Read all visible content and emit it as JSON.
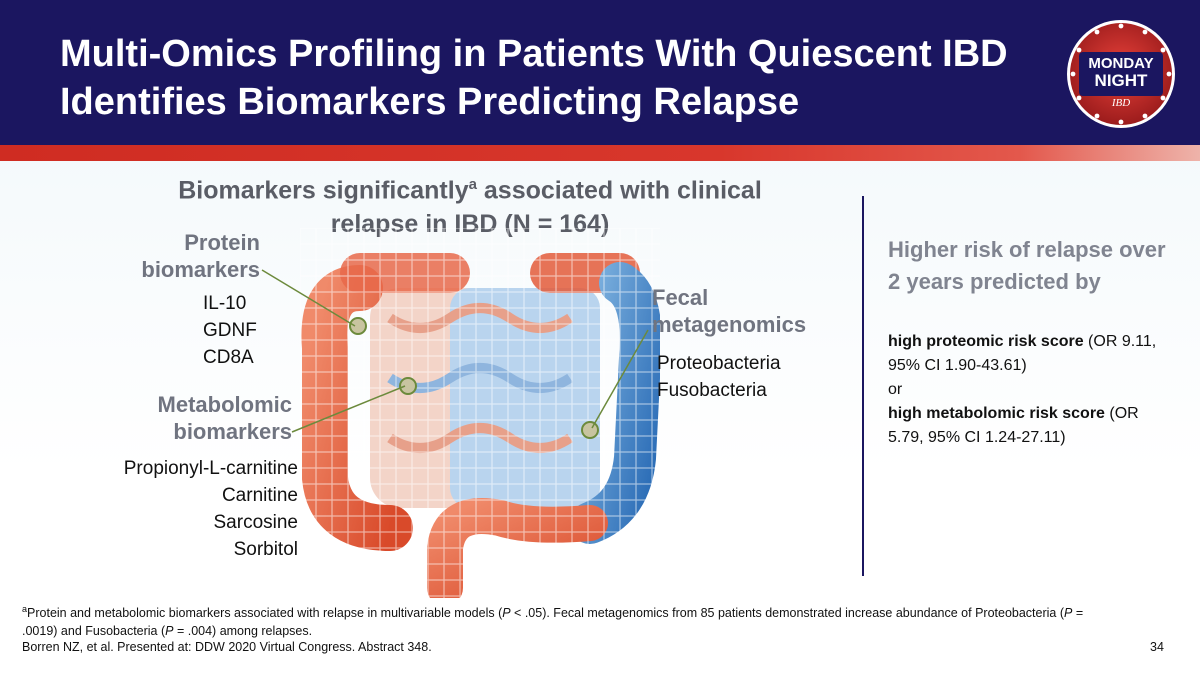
{
  "header": {
    "title_line1": "Multi-Omics Profiling in Patients With Quiescent IBD",
    "title_line2": "Identifies Biomarkers Predicting Relapse",
    "bg_color": "#1b1660",
    "accent_color": "#d8372c"
  },
  "logo": {
    "icon": "monday-night-ibd-logo",
    "text_line1": "MONDAY",
    "text_line2": "NIGHT",
    "text_line3": "IBD"
  },
  "biomarkers": {
    "heading_part1": "Biomarkers significantly",
    "heading_sup": "a",
    "heading_part2": " associated with clinical",
    "heading_line2": "relapse in IBD (N = 164)",
    "protein_label_line1": "Protein",
    "protein_label_line2": "biomarkers",
    "protein_items": [
      "IL-10",
      "GDNF",
      "CD8A"
    ],
    "metab_label_line1": "Metabolomic",
    "metab_label_line2": "biomarkers",
    "metab_items": [
      "Propionyl-L-carnitine",
      "Carnitine",
      "Sarcosine",
      "Sorbitol"
    ],
    "fecal_label_line1": "Fecal",
    "fecal_label_line2": "metagenomics",
    "fecal_items": [
      "Proteobacteria",
      "Fusobacteria"
    ]
  },
  "risk": {
    "heading": "Higher risk of relapse over 2 years predicted by",
    "item1_bold": "high proteomic risk score",
    "item1_rest": " (OR 9.11, 95% CI 1.90-43.61)",
    "connector": "or",
    "item2_bold": "high metabolomic risk score",
    "item2_rest": " (OR 5.79, 95% CI 1.24-27.11)"
  },
  "footnote": {
    "sup": "a",
    "text_a": "Protein and metabolomic biomarkers associated with relapse in multivariable models (",
    "p1": "P",
    "text_b": " < .05). Fecal metagenomics from 85 patients demonstrated increase abundance of Proteobacteria (",
    "p2": "P",
    "text_c": " = .0019) and Fusobacteria (",
    "p3": "P",
    "text_d": " = .004) among relapses.",
    "citation": "Borren NZ, et al. Presented at: DDW 2020 Virtual Congress. Abstract 348.",
    "page_number": "34"
  }
}
